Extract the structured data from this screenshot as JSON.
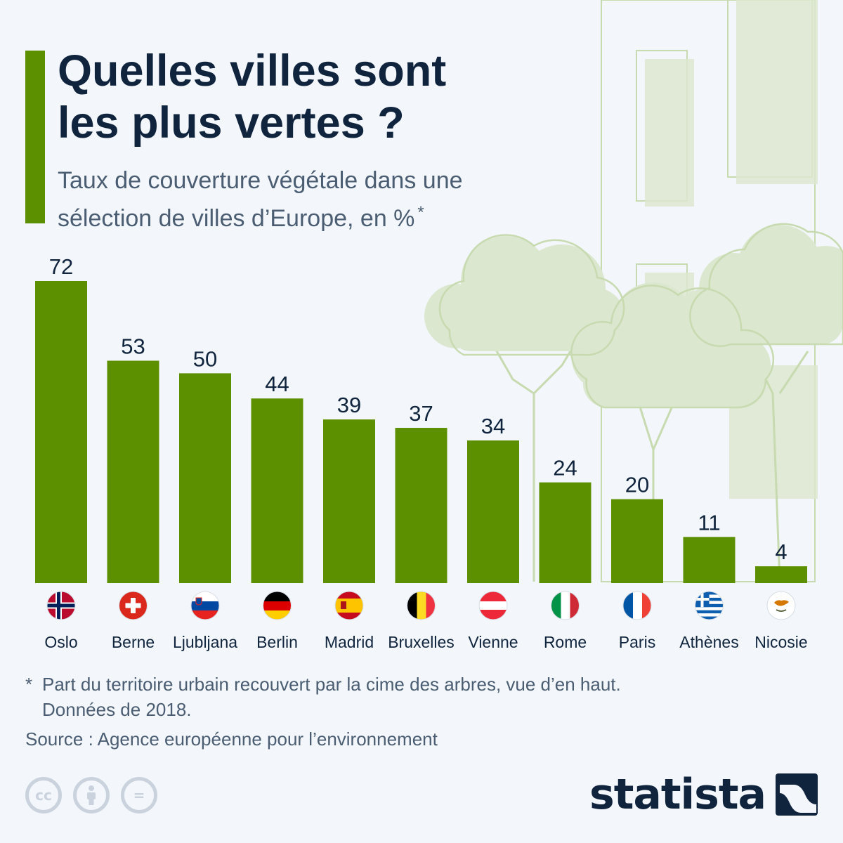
{
  "header": {
    "title_line1": "Quelles villes sont",
    "title_line2": "les plus vertes ?",
    "subtitle_line1": "Taux de couverture végétale dans une",
    "subtitle_line2": "sélection de villes d’Europe, en %",
    "subtitle_mark": "*"
  },
  "chart_data": {
    "type": "bar",
    "categories": [
      "Oslo",
      "Berne",
      "Ljubljana",
      "Berlin",
      "Madrid",
      "Bruxelles",
      "Vienne",
      "Rome",
      "Paris",
      "Athènes",
      "Nicosie"
    ],
    "values": [
      72,
      53,
      50,
      44,
      39,
      37,
      34,
      24,
      20,
      11,
      4
    ],
    "flags": [
      "norway",
      "switzerland",
      "slovenia",
      "germany",
      "spain",
      "belgium",
      "austria",
      "italy",
      "france",
      "greece",
      "cyprus"
    ],
    "title": "",
    "xlabel": "",
    "ylabel": "",
    "ylim": [
      0,
      72
    ],
    "grid": false,
    "legend": "none",
    "bar_color": "#5c9000"
  },
  "footnote": {
    "mark": "*",
    "line1": "Part du territoire urbain recouvert par la cime des arbres, vue d’en haut.",
    "line2": "Données de 2018."
  },
  "source": "Source : Agence européenne pour l’environnement",
  "license_icons": [
    "cc-icon",
    "attribution-icon",
    "no-derivatives-icon"
  ],
  "license_glyphs": {
    "cc": "cc",
    "eq": "="
  },
  "brand": {
    "name": "statista",
    "text_color": "#10243e"
  },
  "colors": {
    "accent": "#5c9000",
    "art": "#dce7cf",
    "art_line": "#c7dab0"
  }
}
